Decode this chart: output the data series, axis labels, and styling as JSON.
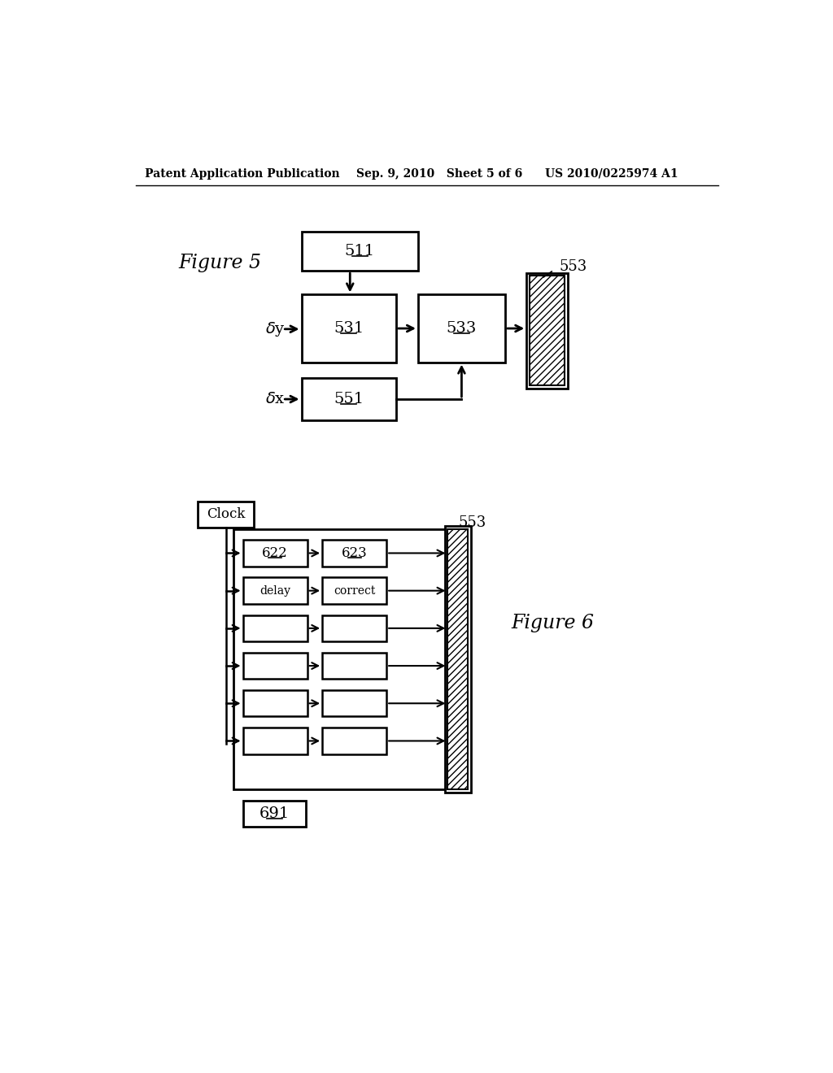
{
  "header_left": "Patent Application Publication",
  "header_mid": "Sep. 9, 2010   Sheet 5 of 6",
  "header_right": "US 2010/0225974 A1",
  "fig5_label": "Figure 5",
  "fig6_label": "Figure 6",
  "bg_color": "#ffffff",
  "box_color": "#000000",
  "box_fill": "#ffffff",
  "text_color": "#000000",
  "hatch_color": "#000000"
}
